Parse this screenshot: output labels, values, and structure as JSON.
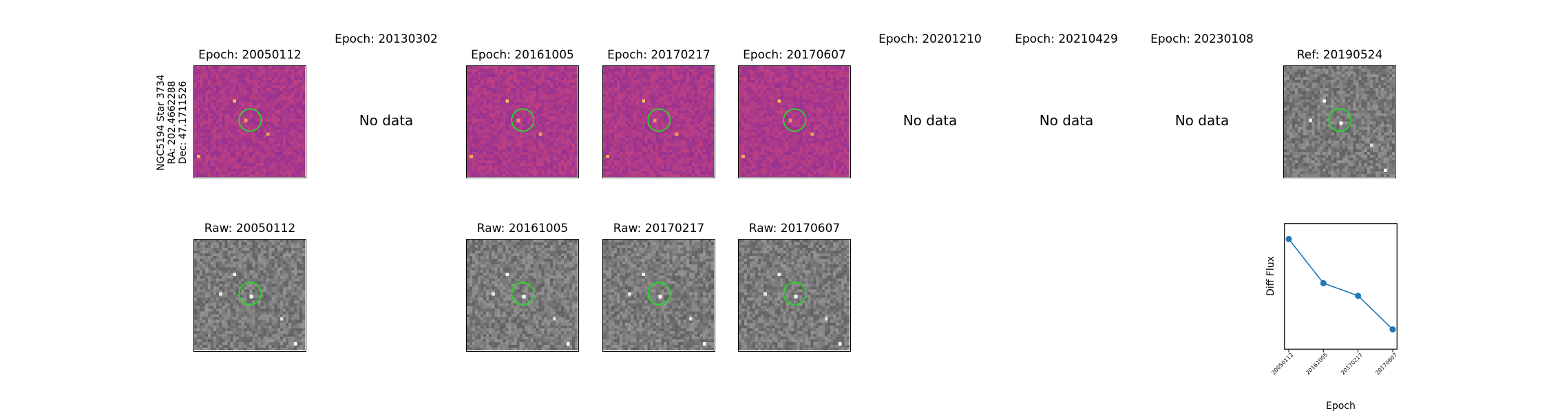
{
  "star_label": [
    "NGC5194 Star 3734",
    "RA: 202.4662288",
    "Dec: 47.1711526"
  ],
  "diff_titles": [
    "Epoch: 20050112",
    "Epoch: 20130302",
    "Epoch: 20161005",
    "Epoch: 20170217",
    "Epoch: 20170607",
    "Epoch: 20201210",
    "Epoch: 20210429",
    "Epoch: 20230108"
  ],
  "ref_title": "Ref: 20190524",
  "raw_titles": [
    "Raw: 20050112",
    "Raw: 20161005",
    "Raw: 20170217",
    "Raw: 20170607"
  ],
  "no_data_text": "No data",
  "colors": {
    "circle": "#22dd22",
    "line": "#1f77b4"
  },
  "chart_data": {
    "type": "line",
    "categories": [
      "20050112",
      "20161005",
      "20170217",
      "20170607"
    ],
    "series": [
      {
        "values": [
          1.0,
          0.58,
          0.46,
          0.14
        ]
      }
    ],
    "xlabel": "Epoch",
    "ylabel": "Diff Flux",
    "ylim": [
      0,
      1.1
    ]
  }
}
